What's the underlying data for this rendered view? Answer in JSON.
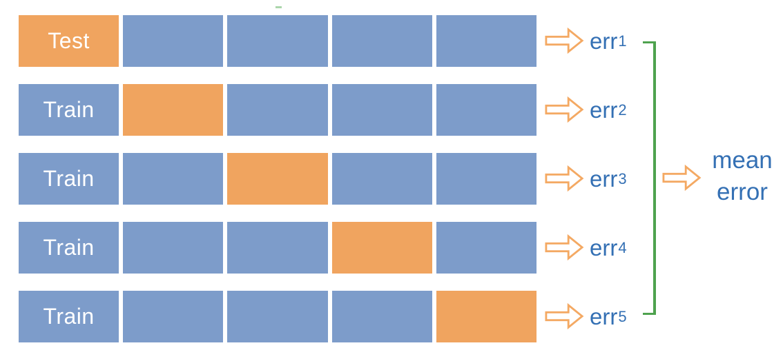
{
  "colors": {
    "train_block": "#7D9CCA",
    "test_block": "#F0A45F",
    "block_label_text": "#FFFFFF",
    "arrow_outline": "#F4A963",
    "err_text": "#3470B4",
    "bracket": "#4EA24E",
    "stray_mark": "#8FC88F",
    "background": "#FFFFFF"
  },
  "blocks_per_row": 5,
  "folds": [
    {
      "label": "Test",
      "test_index": 0,
      "err": {
        "base": "err",
        "sub": "1"
      }
    },
    {
      "label": "Train",
      "test_index": 1,
      "err": {
        "base": "err",
        "sub": "2"
      }
    },
    {
      "label": "Train",
      "test_index": 2,
      "err": {
        "base": "err",
        "sub": "3"
      }
    },
    {
      "label": "Train",
      "test_index": 3,
      "err": {
        "base": "err",
        "sub": "4"
      }
    },
    {
      "label": "Train",
      "test_index": 4,
      "err": {
        "base": "err",
        "sub": "5"
      }
    }
  ],
  "arrows": {
    "fold_arrow_icon": "block-arrow-right-icon",
    "mean_arrow_icon": "block-arrow-right-icon"
  },
  "mean": {
    "lines": [
      "mean",
      "error"
    ]
  }
}
